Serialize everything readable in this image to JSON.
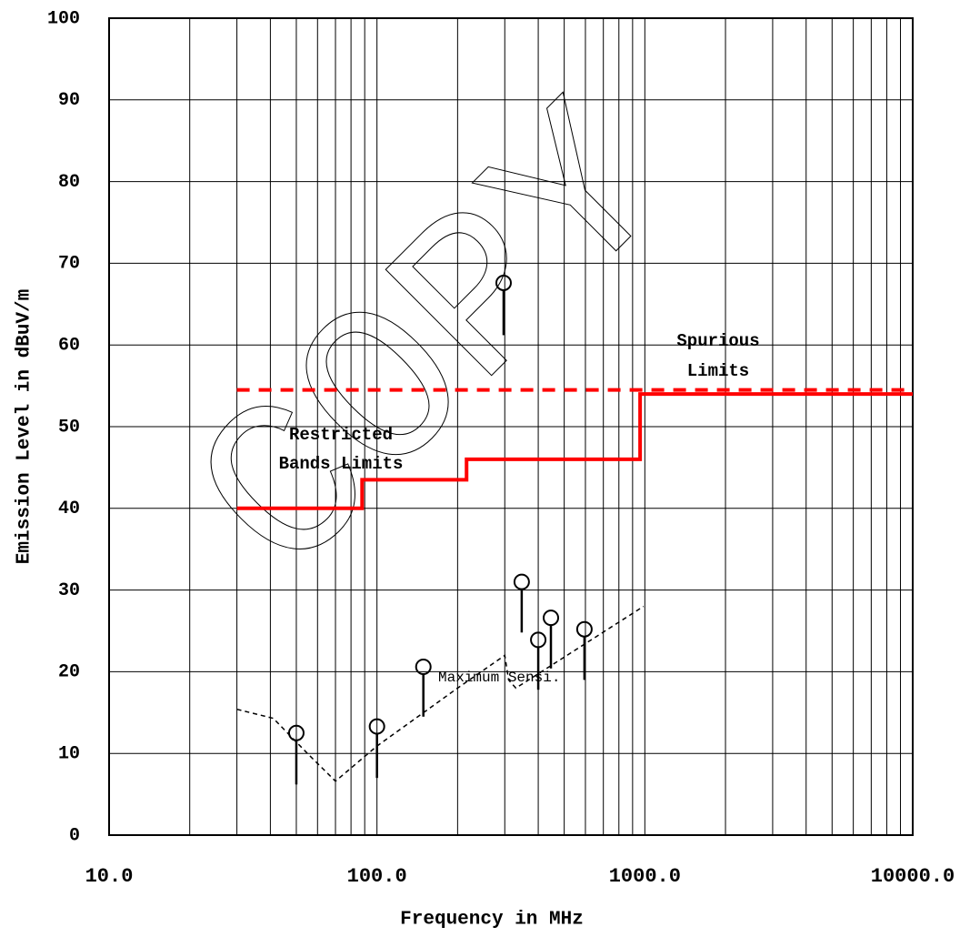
{
  "chart_data": {
    "type": "line",
    "x_label": "Frequency in MHz",
    "y_label": "Emission Level in dBuV/m",
    "xscale": "log",
    "xlim": [
      10,
      10000
    ],
    "ylim": [
      0,
      100
    ],
    "xticks": [
      {
        "value": 10,
        "label": "10.0"
      },
      {
        "value": 100,
        "label": "100.0"
      },
      {
        "value": 1000,
        "label": "1000.0"
      },
      {
        "value": 10000,
        "label": "10000.0"
      }
    ],
    "xgrid_minor": [
      20,
      30,
      40,
      50,
      60,
      70,
      80,
      90,
      200,
      300,
      400,
      500,
      600,
      700,
      800,
      900,
      2000,
      3000,
      4000,
      5000,
      6000,
      7000,
      8000,
      9000
    ],
    "yticks": [
      0,
      10,
      20,
      30,
      40,
      50,
      60,
      70,
      80,
      90,
      100
    ],
    "grid": true,
    "series": [
      {
        "color": "#ff0000",
        "dash": "solid",
        "x": [
          30,
          88,
          88,
          216,
          216,
          960,
          960,
          10000
        ],
        "values": [
          40,
          40,
          43.5,
          43.5,
          46,
          46,
          54,
          54
        ]
      },
      {
        "color": "#ff0000",
        "dash": "dashed",
        "x": [
          30,
          10000
        ],
        "values": [
          54.5,
          54.5
        ]
      },
      {
        "color": "#000000",
        "dash": "dotted",
        "x": [
          30,
          41,
          55,
          70,
          100,
          200,
          300,
          310,
          330,
          989
        ],
        "values": [
          15.4,
          14.3,
          10,
          6.6,
          10.9,
          18,
          22,
          19,
          18,
          28
        ]
      }
    ],
    "peaks": {
      "color": "#000000",
      "x": [
        50,
        100,
        149,
        297,
        347,
        400,
        446,
        595
      ],
      "values": [
        12.5,
        13.3,
        20.6,
        67.6,
        31,
        23.9,
        26.6,
        25.2
      ],
      "low": [
        6.2,
        7,
        14.5,
        61.2,
        24.8,
        17.8,
        20.4,
        19
      ]
    },
    "annotations": [
      {
        "lines": [
          "Spurious",
          "Limits"
        ]
      },
      {
        "lines": [
          "Restricted",
          "Bands Limits"
        ]
      },
      {
        "lines": [
          "Maximum Sensi."
        ]
      }
    ],
    "watermark": "COPY"
  }
}
